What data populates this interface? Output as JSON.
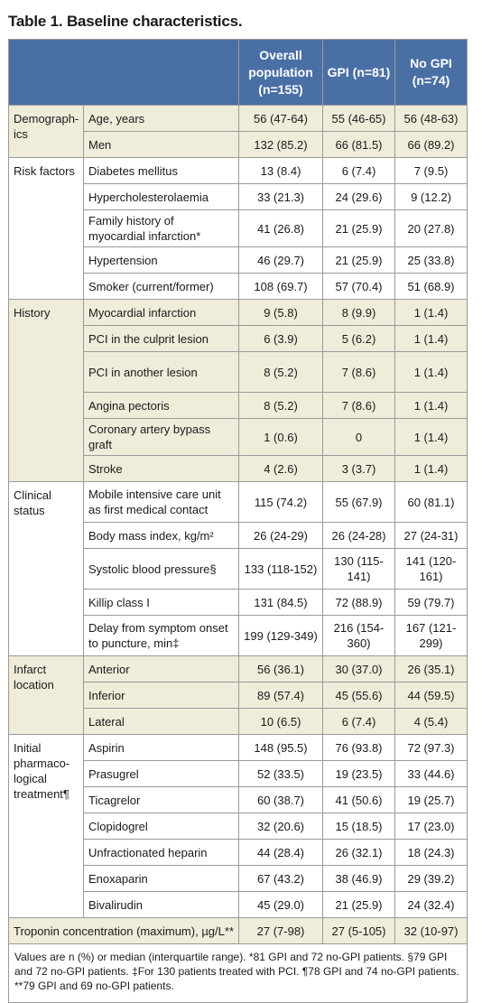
{
  "title": "Table 1. Baseline characteristics.",
  "headers": {
    "overall": "Overall population (n=155)",
    "gpi": "GPI (n=81)",
    "nogpi": "No GPI (n=74)"
  },
  "groups": [
    {
      "label": "Demograph-ics",
      "rows": [
        {
          "label": "Age, years",
          "overall": "56 (47-64)",
          "gpi": "55 (46-65)",
          "nogpi": "56 (48-63)"
        },
        {
          "label": "Men",
          "overall": "132 (85.2)",
          "gpi": "66 (81.5)",
          "nogpi": "66 (89.2)"
        }
      ]
    },
    {
      "label": "Risk factors",
      "rows": [
        {
          "label": "Diabetes mellitus",
          "overall": "13 (8.4)",
          "gpi": "6 (7.4)",
          "nogpi": "7 (9.5)"
        },
        {
          "label": "Hypercholesterolaemia",
          "overall": "33 (21.3)",
          "gpi": "24 (29.6)",
          "nogpi": "9 (12.2)"
        },
        {
          "label": "Family history of myocardial infarction*",
          "overall": "41 (26.8)",
          "gpi": "21 (25.9)",
          "nogpi": "20 (27.8)"
        },
        {
          "label": "Hypertension",
          "overall": "46 (29.7)",
          "gpi": "21 (25.9)",
          "nogpi": "25 (33.8)"
        },
        {
          "label": "Smoker (current/former)",
          "overall": "108 (69.7)",
          "gpi": "57 (70.4)",
          "nogpi": "51 (68.9)"
        }
      ]
    },
    {
      "label": "History",
      "rows": [
        {
          "label": "Myocardial infarction",
          "overall": "9 (5.8)",
          "gpi": "8 (9.9)",
          "nogpi": "1 (1.4)"
        },
        {
          "label": "PCI in the culprit lesion",
          "overall": "6 (3.9)",
          "gpi": "5 (6.2)",
          "nogpi": "1 (1.4)"
        },
        {
          "label": "PCI in another lesion",
          "overall": "8 (5.2)",
          "gpi": "7 (8.6)",
          "nogpi": "1 (1.4)"
        },
        {
          "label": "Angina pectoris",
          "overall": "8 (5.2)",
          "gpi": "7 (8.6)",
          "nogpi": "1 (1.4)"
        },
        {
          "label": "Coronary artery bypass graft",
          "overall": "1 (0.6)",
          "gpi": "0",
          "nogpi": "1 (1.4)"
        },
        {
          "label": "Stroke",
          "overall": "4 (2.6)",
          "gpi": "3 (3.7)",
          "nogpi": "1 (1.4)"
        }
      ]
    },
    {
      "label": "Clinical status",
      "rows": [
        {
          "label": "Mobile intensive care unit as first medical contact",
          "overall": "115 (74.2)",
          "gpi": "55 (67.9)",
          "nogpi": "60 (81.1)"
        },
        {
          "label": "Body mass index, kg/m²",
          "overall": "26 (24-29)",
          "gpi": "26 (24-28)",
          "nogpi": "27 (24-31)"
        },
        {
          "label": "Systolic blood pressure§",
          "overall": "133 (118-152)",
          "gpi": "130 (115-141)",
          "nogpi": "141 (120-161)"
        },
        {
          "label": "Killip class I",
          "overall": "131 (84.5)",
          "gpi": "72 (88.9)",
          "nogpi": "59 (79.7)"
        },
        {
          "label": "Delay from symptom onset to puncture, min‡",
          "overall": "199 (129-349)",
          "gpi": "216 (154-360)",
          "nogpi": "167 (121-299)"
        }
      ]
    },
    {
      "label": "Infarct location",
      "rows": [
        {
          "label": "Anterior",
          "overall": "56 (36.1)",
          "gpi": "30 (37.0)",
          "nogpi": "26 (35.1)"
        },
        {
          "label": "Inferior",
          "overall": "89 (57.4)",
          "gpi": "45 (55.6)",
          "nogpi": "44 (59.5)"
        },
        {
          "label": "Lateral",
          "overall": "10 (6.5)",
          "gpi": "6 (7.4)",
          "nogpi": "4 (5.4)"
        }
      ]
    },
    {
      "label": "Initial pharmaco-logical treatment¶",
      "rows": [
        {
          "label": "Aspirin",
          "overall": "148 (95.5)",
          "gpi": "76 (93.8)",
          "nogpi": "72 (97.3)"
        },
        {
          "label": "Prasugrel",
          "overall": "52 (33.5)",
          "gpi": "19 (23.5)",
          "nogpi": "33 (44.6)"
        },
        {
          "label": "Ticagrelor",
          "overall": "60 (38.7)",
          "gpi": "41 (50.6)",
          "nogpi": "19 (25.7)"
        },
        {
          "label": "Clopidogrel",
          "overall": "32 (20.6)",
          "gpi": "15 (18.5)",
          "nogpi": "17 (23.0)"
        },
        {
          "label": "Unfractionated heparin",
          "overall": "44 (28.4)",
          "gpi": "26 (32.1)",
          "nogpi": "18 (24.3)"
        },
        {
          "label": "Enoxaparin",
          "overall": "67 (43.2)",
          "gpi": "38 (46.9)",
          "nogpi": "29 (39.2)"
        },
        {
          "label": "Bivalirudin",
          "overall": "45 (29.0)",
          "gpi": "21 (25.9)",
          "nogpi": "24 (32.4)"
        }
      ]
    }
  ],
  "troponin": {
    "label": "Troponin concentration (maximum), µg/L**",
    "overall": "27 (7-98)",
    "gpi": "27 (5-105)",
    "nogpi": "32 (10-97)"
  },
  "footnote": "Values are n (%) or median (interquartile range). *81 GPI and 72 no-GPI patients. §79 GPI and 72 no-GPI patients. ‡For 130 patients treated with PCI. ¶78 GPI and 74 no-GPI patients. **79 GPI and 69 no-GPI patients."
}
